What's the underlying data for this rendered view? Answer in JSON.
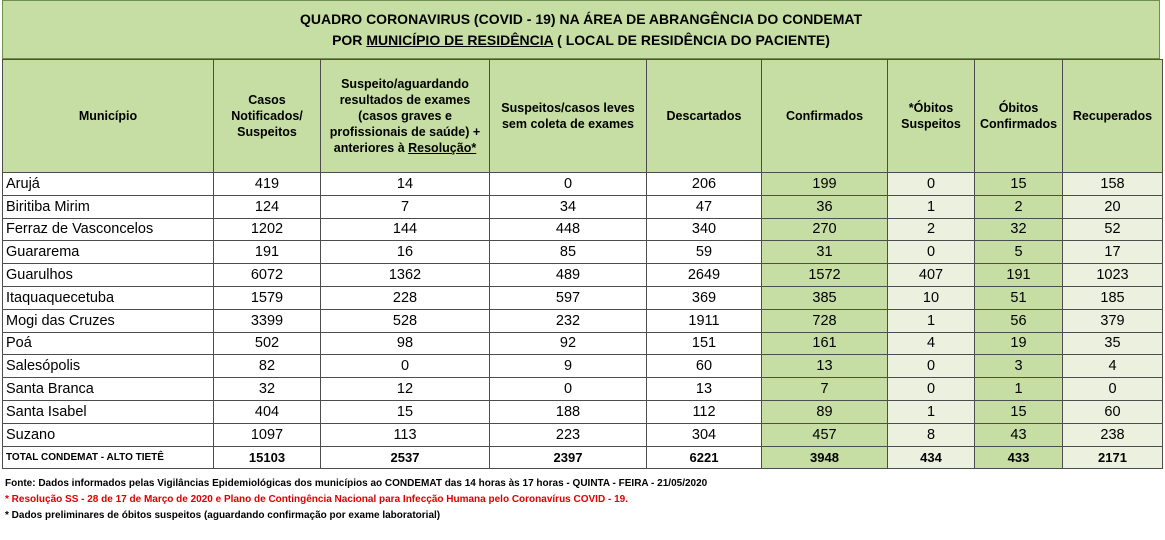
{
  "title": {
    "line1": "QUADRO CORONAVIRUS (COVID - 19) NA ÁREA DE ABRANGÊNCIA DO CONDEMAT",
    "line2_prefix": "POR ",
    "line2_underlined": "MUNICÍPIO DE RESIDÊNCIA",
    "line2_suffix": " ( LOCAL DE RESIDÊNCIA DO PACIENTE)"
  },
  "headers": {
    "municipio": "Município",
    "casos": "Casos Notificados/ Suspeitos",
    "suspeito_pre": "Suspeito/aguardando resultados de exames (casos graves e profissionais de saúde) + anteriores à ",
    "suspeito_link": "Resolução*",
    "leves": "Suspeitos/casos leves sem coleta de exames",
    "descartados": "Descartados",
    "confirmados": "Confirmados",
    "obitos_susp": "*Óbitos Suspeitos",
    "obitos_conf": "Óbitos Confirmados",
    "recuperados": "Recuperados"
  },
  "rows": [
    {
      "mun": "Arujá",
      "casos": "419",
      "susp": "14",
      "leves": "0",
      "desc": "206",
      "conf": "199",
      "obs": "0",
      "obc": "15",
      "rec": "158"
    },
    {
      "mun": "Biritiba Mirim",
      "casos": "124",
      "susp": "7",
      "leves": "34",
      "desc": "47",
      "conf": "36",
      "obs": "1",
      "obc": "2",
      "rec": "20"
    },
    {
      "mun": "Ferraz de Vasconcelos",
      "casos": "1202",
      "susp": "144",
      "leves": "448",
      "desc": "340",
      "conf": "270",
      "obs": "2",
      "obc": "32",
      "rec": "52"
    },
    {
      "mun": "Guararema",
      "casos": "191",
      "susp": "16",
      "leves": "85",
      "desc": "59",
      "conf": "31",
      "obs": "0",
      "obc": "5",
      "rec": "17"
    },
    {
      "mun": "Guarulhos",
      "casos": "6072",
      "susp": "1362",
      "leves": "489",
      "desc": "2649",
      "conf": "1572",
      "obs": "407",
      "obc": "191",
      "rec": "1023"
    },
    {
      "mun": "Itaquaquecetuba",
      "casos": "1579",
      "susp": "228",
      "leves": "597",
      "desc": "369",
      "conf": "385",
      "obs": "10",
      "obc": "51",
      "rec": "185"
    },
    {
      "mun": "Mogi das Cruzes",
      "casos": "3399",
      "susp": "528",
      "leves": "232",
      "desc": "1911",
      "conf": "728",
      "obs": "1",
      "obc": "56",
      "rec": "379"
    },
    {
      "mun": "Poá",
      "casos": "502",
      "susp": "98",
      "leves": "92",
      "desc": "151",
      "conf": "161",
      "obs": "4",
      "obc": "19",
      "rec": "35"
    },
    {
      "mun": "Salesópolis",
      "casos": "82",
      "susp": "0",
      "leves": "9",
      "desc": "60",
      "conf": "13",
      "obs": "0",
      "obc": "3",
      "rec": "4"
    },
    {
      "mun": "Santa Branca",
      "casos": "32",
      "susp": "12",
      "leves": "0",
      "desc": "13",
      "conf": "7",
      "obs": "0",
      "obc": "1",
      "rec": "0"
    },
    {
      "mun": "Santa Isabel",
      "casos": "404",
      "susp": "15",
      "leves": "188",
      "desc": "112",
      "conf": "89",
      "obs": "1",
      "obc": "15",
      "rec": "60"
    },
    {
      "mun": "Suzano",
      "casos": "1097",
      "susp": "113",
      "leves": "223",
      "desc": "304",
      "conf": "457",
      "obs": "8",
      "obc": "43",
      "rec": "238"
    }
  ],
  "total": {
    "mun": "TOTAL CONDEMAT - ALTO TIETÊ",
    "casos": "15103",
    "susp": "2537",
    "leves": "2397",
    "desc": "6221",
    "conf": "3948",
    "obs": "434",
    "obc": "433",
    "rec": "2171"
  },
  "notes": {
    "fonte": "Fonte: Dados informados pelas Vigilâncias Epidemiológicas dos municípios ao CONDEMAT das 14 horas às 17 horas - QUINTA - FEIRA - 21/05/2020",
    "resolucao": "* Resolução SS - 28 de 17 de Março de 2020 e Plano de Contingência Nacional para Infecção Humana pelo Coronavírus COVID - 19.",
    "preliminares": "* Dados preliminares de óbitos suspeitos (aguardando confirmação por exame laboratorial)"
  }
}
